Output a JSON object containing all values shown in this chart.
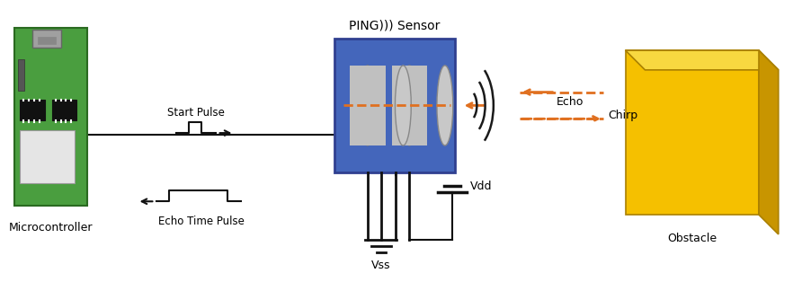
{
  "fig_width": 8.82,
  "fig_height": 3.14,
  "bg_color": "#ffffff",
  "board_color": "#4a9e3f",
  "board_label": "Microcontroller",
  "sensor_label": "PING))) Sensor",
  "echo_label": "Echo",
  "chirp_label": "Chirp",
  "vdd_label": "Vdd",
  "vss_label": "Vss",
  "obstacle_label": "Obstacle",
  "start_pulse_label": "Start Pulse",
  "echo_time_label": "Echo Time Pulse",
  "sensor_blue": "#4466bb",
  "sensor_gray_light": "#c8c8c8",
  "sensor_gray_dark": "#999999",
  "wave_color": "#1a1a1a",
  "chirp_color": "#e07020",
  "obstacle_front": "#f5c000",
  "obstacle_top": "#f8d840",
  "obstacle_right": "#c89500",
  "line_color": "#111111"
}
